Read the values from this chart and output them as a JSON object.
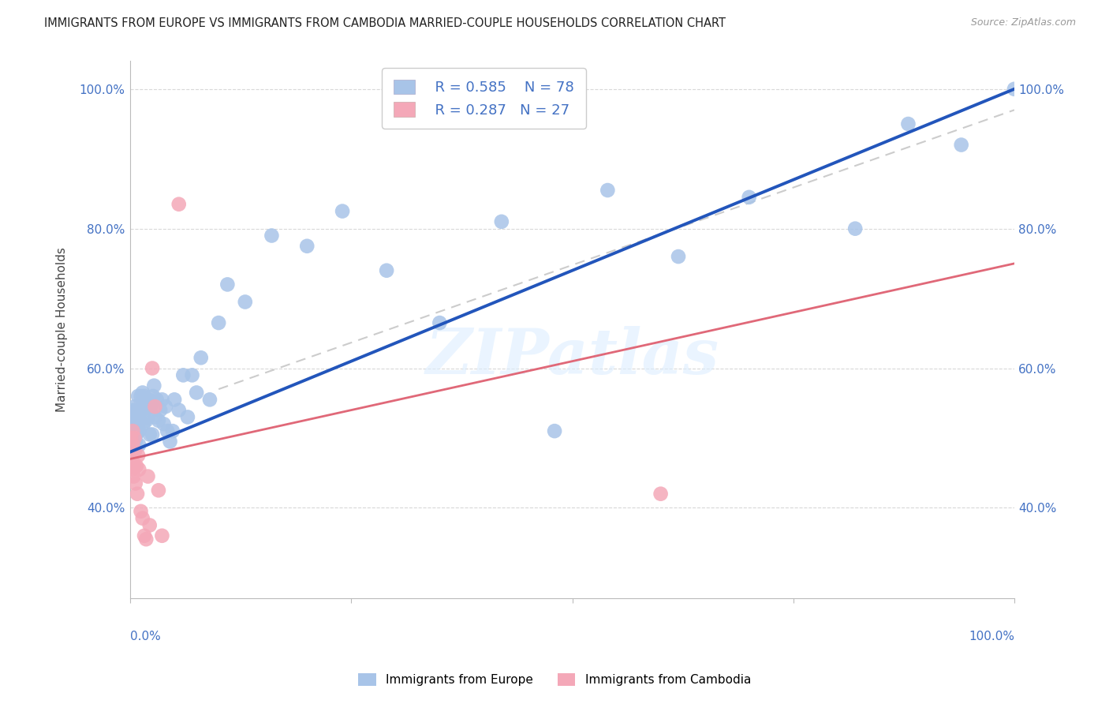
{
  "title": "IMMIGRANTS FROM EUROPE VS IMMIGRANTS FROM CAMBODIA MARRIED-COUPLE HOUSEHOLDS CORRELATION CHART",
  "source": "Source: ZipAtlas.com",
  "ylabel": "Married-couple Households",
  "legend_europe_R": "R = 0.585",
  "legend_europe_N": "N = 78",
  "legend_cambodia_R": "R = 0.287",
  "legend_cambodia_N": "N = 27",
  "europe_color": "#a8c4e8",
  "cambodia_color": "#f4a8b8",
  "europe_line_color": "#2255bb",
  "cambodia_line_color": "#e06878",
  "gray_dash_color": "#cccccc",
  "watermark": "ZIPatlas",
  "ytick_vals": [
    0.4,
    0.6,
    0.8,
    1.0
  ],
  "ytick_labels": [
    "40.0%",
    "60.0%",
    "80.0%",
    "100.0%"
  ],
  "xlim": [
    0.0,
    1.0
  ],
  "ylim": [
    0.27,
    1.04
  ],
  "europe_points_x": [
    0.001,
    0.001,
    0.002,
    0.002,
    0.002,
    0.003,
    0.003,
    0.003,
    0.003,
    0.004,
    0.004,
    0.004,
    0.004,
    0.005,
    0.005,
    0.005,
    0.005,
    0.006,
    0.006,
    0.006,
    0.007,
    0.007,
    0.008,
    0.008,
    0.009,
    0.01,
    0.01,
    0.011,
    0.012,
    0.013,
    0.014,
    0.015,
    0.016,
    0.017,
    0.018,
    0.019,
    0.02,
    0.021,
    0.022,
    0.023,
    0.025,
    0.026,
    0.027,
    0.028,
    0.03,
    0.032,
    0.034,
    0.036,
    0.038,
    0.04,
    0.042,
    0.045,
    0.048,
    0.05,
    0.055,
    0.06,
    0.065,
    0.07,
    0.075,
    0.08,
    0.09,
    0.1,
    0.11,
    0.13,
    0.16,
    0.2,
    0.24,
    0.29,
    0.35,
    0.42,
    0.48,
    0.54,
    0.62,
    0.7,
    0.82,
    0.88,
    0.94,
    1.0
  ],
  "europe_points_y": [
    0.51,
    0.525,
    0.505,
    0.52,
    0.535,
    0.49,
    0.505,
    0.52,
    0.53,
    0.5,
    0.515,
    0.525,
    0.54,
    0.5,
    0.51,
    0.525,
    0.545,
    0.495,
    0.51,
    0.53,
    0.505,
    0.52,
    0.515,
    0.54,
    0.56,
    0.49,
    0.51,
    0.525,
    0.56,
    0.54,
    0.565,
    0.52,
    0.56,
    0.545,
    0.525,
    0.545,
    0.53,
    0.555,
    0.505,
    0.545,
    0.505,
    0.56,
    0.575,
    0.53,
    0.555,
    0.525,
    0.54,
    0.555,
    0.52,
    0.545,
    0.51,
    0.495,
    0.51,
    0.555,
    0.54,
    0.59,
    0.53,
    0.59,
    0.565,
    0.615,
    0.555,
    0.665,
    0.72,
    0.695,
    0.79,
    0.775,
    0.825,
    0.74,
    0.665,
    0.81,
    0.51,
    0.855,
    0.76,
    0.845,
    0.8,
    0.95,
    0.92,
    1.0
  ],
  "cambodia_points_x": [
    0.001,
    0.001,
    0.002,
    0.002,
    0.003,
    0.003,
    0.004,
    0.004,
    0.005,
    0.005,
    0.006,
    0.007,
    0.008,
    0.009,
    0.01,
    0.012,
    0.014,
    0.016,
    0.018,
    0.02,
    0.022,
    0.025,
    0.028,
    0.032,
    0.036,
    0.055,
    0.6
  ],
  "cambodia_points_y": [
    0.48,
    0.5,
    0.455,
    0.47,
    0.49,
    0.51,
    0.445,
    0.46,
    0.48,
    0.5,
    0.435,
    0.46,
    0.42,
    0.475,
    0.455,
    0.395,
    0.385,
    0.36,
    0.355,
    0.445,
    0.375,
    0.6,
    0.545,
    0.425,
    0.36,
    0.835,
    0.42
  ],
  "europe_line_x0": 0.0,
  "europe_line_y0": 0.48,
  "europe_line_x1": 1.0,
  "europe_line_y1": 1.0,
  "cambodia_line_x0": 0.0,
  "cambodia_line_y0": 0.47,
  "cambodia_line_x1": 1.0,
  "cambodia_line_y1": 0.75,
  "gray_line_x0": 0.1,
  "gray_line_y0": 0.57,
  "gray_line_x1": 1.0,
  "gray_line_y1": 0.97
}
